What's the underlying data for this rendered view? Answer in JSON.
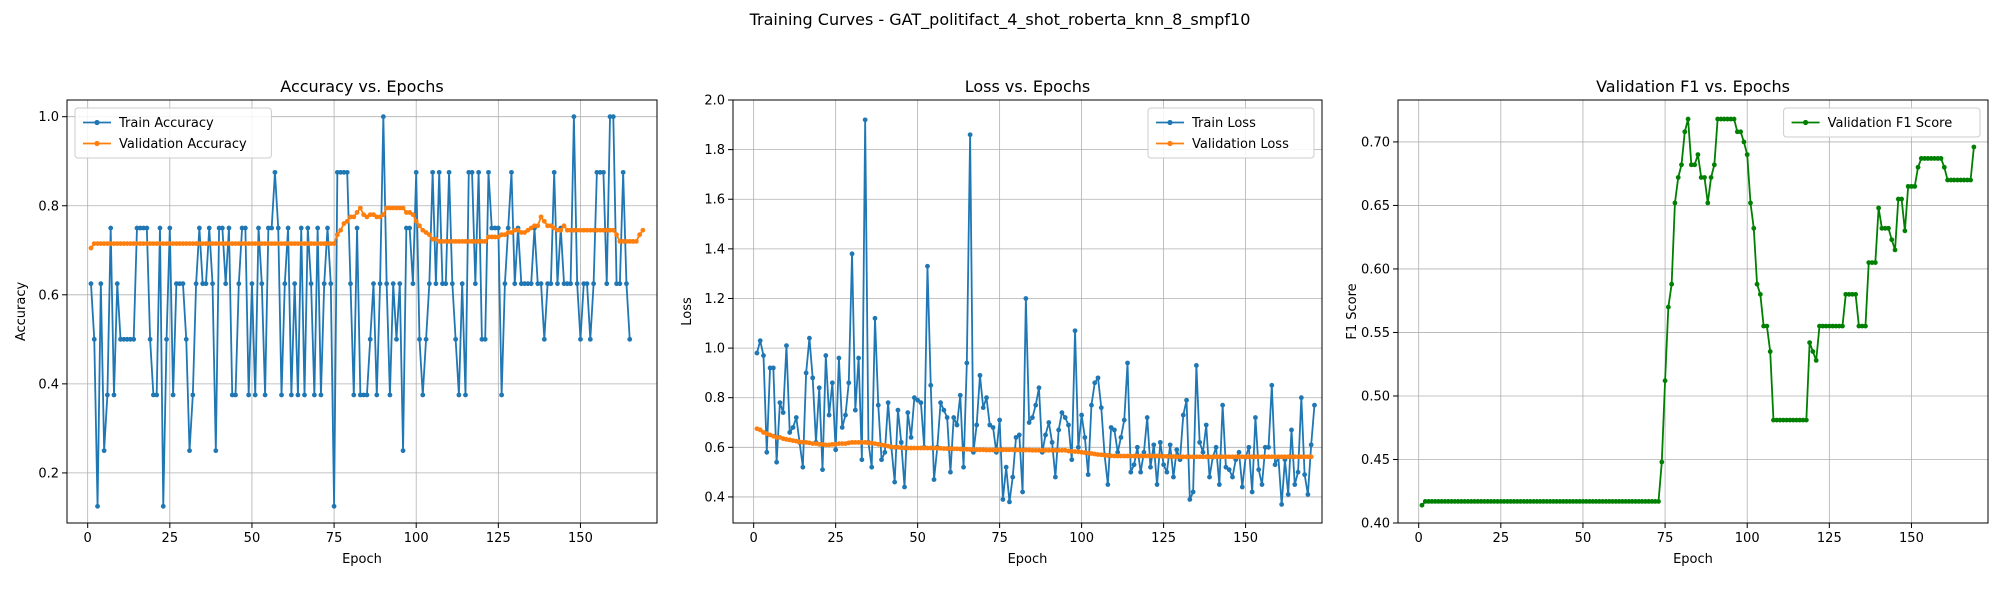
{
  "figure": {
    "suptitle": "Training Curves - GAT_politifact_4_shot_roberta_knn_8_smpf10"
  },
  "chart_data": [
    {
      "type": "line",
      "title": "Accuracy vs. Epochs",
      "xlabel": "Epoch",
      "ylabel": "Accuracy",
      "xlim": [
        -6.3,
        173.3
      ],
      "ylim": [
        0.0875,
        1.0375
      ],
      "xticks": [
        0,
        25,
        50,
        75,
        100,
        125,
        150
      ],
      "yticks": [
        0.2,
        0.4,
        0.6,
        0.8,
        1.0
      ],
      "ytick_labels": [
        "0.2",
        "0.4",
        "0.6",
        "0.8",
        "1.0"
      ],
      "grid": true,
      "legend": "upper-left",
      "x_start": 1,
      "series": [
        {
          "name": "Train Accuracy",
          "color": "#1f77b4",
          "values": [
            0.625,
            0.5,
            0.125,
            0.625,
            0.25,
            0.375,
            0.75,
            0.375,
            0.625,
            0.5,
            0.5,
            0.5,
            0.5,
            0.5,
            0.75,
            0.75,
            0.75,
            0.75,
            0.5,
            0.375,
            0.375,
            0.75,
            0.125,
            0.5,
            0.75,
            0.375,
            0.625,
            0.625,
            0.625,
            0.5,
            0.25,
            0.375,
            0.625,
            0.75,
            0.625,
            0.625,
            0.75,
            0.625,
            0.25,
            0.75,
            0.75,
            0.625,
            0.75,
            0.375,
            0.375,
            0.625,
            0.75,
            0.75,
            0.375,
            0.625,
            0.375,
            0.75,
            0.625,
            0.375,
            0.75,
            0.75,
            0.875,
            0.75,
            0.375,
            0.625,
            0.75,
            0.375,
            0.625,
            0.375,
            0.75,
            0.375,
            0.75,
            0.625,
            0.375,
            0.75,
            0.375,
            0.625,
            0.75,
            0.625,
            0.125,
            0.875,
            0.875,
            0.875,
            0.875,
            0.625,
            0.375,
            0.75,
            0.375,
            0.375,
            0.375,
            0.5,
            0.625,
            0.375,
            0.625,
            1.0,
            0.625,
            0.375,
            0.625,
            0.5,
            0.625,
            0.25,
            0.75,
            0.75,
            0.625,
            0.875,
            0.5,
            0.375,
            0.5,
            0.625,
            0.875,
            0.625,
            0.875,
            0.625,
            0.625,
            0.875,
            0.625,
            0.5,
            0.375,
            0.625,
            0.375,
            0.875,
            0.875,
            0.625,
            0.875,
            0.5,
            0.5,
            0.875,
            0.75,
            0.75,
            0.75,
            0.375,
            0.625,
            0.75,
            0.875,
            0.625,
            0.75,
            0.625,
            0.625,
            0.625,
            0.625,
            0.75,
            0.625,
            0.625,
            0.5,
            0.625,
            0.625,
            0.875,
            0.625,
            0.75,
            0.625,
            0.625,
            0.625,
            1.0,
            0.625,
            0.5,
            0.625,
            0.625,
            0.5,
            0.625,
            0.875,
            0.875,
            0.875,
            0.625,
            1.0,
            1.0,
            0.625,
            0.625,
            0.875,
            0.625,
            0.5
          ]
        },
        {
          "name": "Validation Accuracy",
          "color": "#ff7f0e",
          "values": [
            0.705,
            0.715,
            0.715,
            0.715,
            0.715,
            0.715,
            0.715,
            0.715,
            0.715,
            0.715,
            0.715,
            0.715,
            0.715,
            0.715,
            0.715,
            0.715,
            0.715,
            0.715,
            0.715,
            0.715,
            0.715,
            0.715,
            0.715,
            0.715,
            0.715,
            0.715,
            0.715,
            0.715,
            0.715,
            0.715,
            0.715,
            0.715,
            0.715,
            0.715,
            0.715,
            0.715,
            0.715,
            0.715,
            0.715,
            0.715,
            0.715,
            0.715,
            0.715,
            0.715,
            0.715,
            0.715,
            0.715,
            0.715,
            0.715,
            0.715,
            0.715,
            0.715,
            0.715,
            0.715,
            0.715,
            0.715,
            0.715,
            0.715,
            0.715,
            0.715,
            0.715,
            0.715,
            0.715,
            0.715,
            0.715,
            0.715,
            0.715,
            0.715,
            0.715,
            0.715,
            0.715,
            0.715,
            0.715,
            0.715,
            0.715,
            0.735,
            0.745,
            0.76,
            0.765,
            0.775,
            0.775,
            0.785,
            0.795,
            0.78,
            0.775,
            0.78,
            0.78,
            0.775,
            0.775,
            0.78,
            0.795,
            0.795,
            0.795,
            0.795,
            0.795,
            0.795,
            0.785,
            0.785,
            0.78,
            0.765,
            0.755,
            0.745,
            0.74,
            0.735,
            0.725,
            0.725,
            0.72,
            0.72,
            0.72,
            0.72,
            0.72,
            0.72,
            0.72,
            0.72,
            0.72,
            0.72,
            0.72,
            0.72,
            0.72,
            0.72,
            0.72,
            0.73,
            0.73,
            0.73,
            0.73,
            0.735,
            0.735,
            0.74,
            0.74,
            0.745,
            0.745,
            0.74,
            0.74,
            0.745,
            0.75,
            0.755,
            0.755,
            0.775,
            0.765,
            0.755,
            0.755,
            0.75,
            0.745,
            0.745,
            0.755,
            0.745,
            0.745,
            0.745,
            0.745,
            0.745,
            0.745,
            0.745,
            0.745,
            0.745,
            0.745,
            0.745,
            0.745,
            0.745,
            0.745,
            0.745,
            0.735,
            0.72,
            0.72,
            0.72,
            0.72,
            0.72,
            0.72,
            0.735,
            0.745
          ]
        }
      ]
    },
    {
      "type": "line",
      "title": "Loss vs. Epochs",
      "xlabel": "Epoch",
      "ylabel": "Loss",
      "xlim": [
        -6.3,
        173.3
      ],
      "ylim": [
        0.295,
        2.0
      ],
      "xticks": [
        0,
        25,
        50,
        75,
        100,
        125,
        150
      ],
      "yticks": [
        0.4,
        0.6,
        0.8,
        1.0,
        1.2,
        1.4,
        1.6,
        1.8,
        2.0
      ],
      "ytick_labels": [
        "0.4",
        "0.6",
        "0.8",
        "1.0",
        "1.2",
        "1.4",
        "1.6",
        "1.8",
        "2.0"
      ],
      "grid": true,
      "legend": "upper-right",
      "x_start": 1,
      "series": [
        {
          "name": "Train Loss",
          "color": "#1f77b4",
          "values": [
            0.98,
            1.03,
            0.97,
            0.58,
            0.92,
            0.92,
            0.54,
            0.78,
            0.74,
            1.01,
            0.66,
            0.68,
            0.72,
            0.62,
            0.52,
            0.9,
            1.04,
            0.88,
            0.62,
            0.84,
            0.51,
            0.97,
            0.73,
            0.86,
            0.59,
            0.96,
            0.68,
            0.73,
            0.86,
            1.38,
            0.75,
            0.96,
            0.55,
            1.92,
            0.62,
            0.52,
            1.12,
            0.77,
            0.55,
            0.58,
            0.78,
            0.6,
            0.46,
            0.75,
            0.62,
            0.44,
            0.74,
            0.64,
            0.8,
            0.79,
            0.78,
            0.6,
            1.33,
            0.85,
            0.47,
            0.6,
            0.78,
            0.75,
            0.72,
            0.5,
            0.72,
            0.69,
            0.81,
            0.52,
            0.94,
            1.86,
            0.58,
            0.69,
            0.89,
            0.76,
            0.8,
            0.69,
            0.68,
            0.58,
            0.71,
            0.39,
            0.52,
            0.38,
            0.48,
            0.64,
            0.65,
            0.42,
            1.2,
            0.7,
            0.72,
            0.77,
            0.84,
            0.58,
            0.65,
            0.7,
            0.62,
            0.48,
            0.67,
            0.74,
            0.72,
            0.69,
            0.55,
            1.07,
            0.6,
            0.73,
            0.64,
            0.49,
            0.77,
            0.86,
            0.88,
            0.76,
            0.57,
            0.45,
            0.68,
            0.67,
            0.58,
            0.64,
            0.71,
            0.94,
            0.5,
            0.53,
            0.6,
            0.5,
            0.58,
            0.72,
            0.52,
            0.61,
            0.45,
            0.62,
            0.53,
            0.5,
            0.61,
            0.48,
            0.59,
            0.55,
            0.73,
            0.79,
            0.39,
            0.42,
            0.93,
            0.62,
            0.58,
            0.69,
            0.48,
            0.56,
            0.6,
            0.45,
            0.77,
            0.52,
            0.51,
            0.48,
            0.55,
            0.58,
            0.44,
            0.56,
            0.6,
            0.42,
            0.72,
            0.51,
            0.45,
            0.6,
            0.6,
            0.85,
            0.53,
            0.56,
            0.37,
            0.55,
            0.41,
            0.67,
            0.45,
            0.5,
            0.8,
            0.49,
            0.41,
            0.61,
            0.77
          ]
        },
        {
          "name": "Validation Loss",
          "color": "#ff7f0e",
          "values": [
            0.675,
            0.67,
            0.66,
            0.655,
            0.65,
            0.645,
            0.64,
            0.64,
            0.635,
            0.632,
            0.63,
            0.627,
            0.625,
            0.622,
            0.62,
            0.62,
            0.618,
            0.615,
            0.615,
            0.612,
            0.612,
            0.61,
            0.61,
            0.612,
            0.612,
            0.615,
            0.615,
            0.615,
            0.618,
            0.62,
            0.62,
            0.62,
            0.62,
            0.62,
            0.618,
            0.617,
            0.615,
            0.612,
            0.61,
            0.608,
            0.605,
            0.602,
            0.6,
            0.6,
            0.598,
            0.598,
            0.597,
            0.597,
            0.597,
            0.597,
            0.597,
            0.597,
            0.597,
            0.597,
            0.597,
            0.596,
            0.596,
            0.595,
            0.595,
            0.595,
            0.594,
            0.594,
            0.593,
            0.592,
            0.592,
            0.591,
            0.591,
            0.59,
            0.59,
            0.59,
            0.589,
            0.589,
            0.589,
            0.589,
            0.59,
            0.59,
            0.59,
            0.59,
            0.59,
            0.589,
            0.589,
            0.589,
            0.589,
            0.589,
            0.588,
            0.588,
            0.588,
            0.588,
            0.588,
            0.588,
            0.588,
            0.588,
            0.588,
            0.588,
            0.588,
            0.585,
            0.584,
            0.583,
            0.582,
            0.58,
            0.579,
            0.577,
            0.575,
            0.573,
            0.571,
            0.57,
            0.568,
            0.567,
            0.566,
            0.565,
            0.565,
            0.565,
            0.565,
            0.565,
            0.565,
            0.565,
            0.565,
            0.565,
            0.565,
            0.565,
            0.565,
            0.565,
            0.565,
            0.565,
            0.564,
            0.564,
            0.563,
            0.563,
            0.562,
            0.562,
            0.562,
            0.562,
            0.562,
            0.562,
            0.562,
            0.562,
            0.562,
            0.562,
            0.562,
            0.562,
            0.562,
            0.562,
            0.562,
            0.562,
            0.562,
            0.562,
            0.562,
            0.562,
            0.562,
            0.562,
            0.562,
            0.562,
            0.562,
            0.562,
            0.562,
            0.562,
            0.562,
            0.562,
            0.562,
            0.562,
            0.562,
            0.562,
            0.562,
            0.562,
            0.562,
            0.562,
            0.562,
            0.562,
            0.562,
            0.562
          ]
        }
      ]
    },
    {
      "type": "line",
      "title": "Validation F1 vs. Epochs",
      "xlabel": "Epoch",
      "ylabel": "F1 Score",
      "xlim": [
        -6.3,
        173.3
      ],
      "ylim": [
        0.4,
        0.733
      ],
      "xticks": [
        0,
        25,
        50,
        75,
        100,
        125,
        150
      ],
      "yticks": [
        0.4,
        0.45,
        0.5,
        0.55,
        0.6,
        0.65,
        0.7
      ],
      "ytick_labels": [
        "0.40",
        "0.45",
        "0.50",
        "0.55",
        "0.60",
        "0.65",
        "0.70"
      ],
      "grid": true,
      "legend": "upper-right",
      "x_start": 1,
      "series": [
        {
          "name": "Validation F1 Score",
          "color": "#008000",
          "values": [
            0.414,
            0.417,
            0.417,
            0.417,
            0.417,
            0.417,
            0.417,
            0.417,
            0.417,
            0.417,
            0.417,
            0.417,
            0.417,
            0.417,
            0.417,
            0.417,
            0.417,
            0.417,
            0.417,
            0.417,
            0.417,
            0.417,
            0.417,
            0.417,
            0.417,
            0.417,
            0.417,
            0.417,
            0.417,
            0.417,
            0.417,
            0.417,
            0.417,
            0.417,
            0.417,
            0.417,
            0.417,
            0.417,
            0.417,
            0.417,
            0.417,
            0.417,
            0.417,
            0.417,
            0.417,
            0.417,
            0.417,
            0.417,
            0.417,
            0.417,
            0.417,
            0.417,
            0.417,
            0.417,
            0.417,
            0.417,
            0.417,
            0.417,
            0.417,
            0.417,
            0.417,
            0.417,
            0.417,
            0.417,
            0.417,
            0.417,
            0.417,
            0.417,
            0.417,
            0.417,
            0.417,
            0.417,
            0.417,
            0.448,
            0.512,
            0.57,
            0.588,
            0.652,
            0.672,
            0.682,
            0.708,
            0.718,
            0.682,
            0.682,
            0.69,
            0.672,
            0.672,
            0.652,
            0.672,
            0.682,
            0.718,
            0.718,
            0.718,
            0.718,
            0.718,
            0.718,
            0.708,
            0.708,
            0.7,
            0.69,
            0.652,
            0.632,
            0.588,
            0.58,
            0.555,
            0.555,
            0.535,
            0.481,
            0.481,
            0.481,
            0.481,
            0.481,
            0.481,
            0.481,
            0.481,
            0.481,
            0.481,
            0.481,
            0.542,
            0.535,
            0.528,
            0.555,
            0.555,
            0.555,
            0.555,
            0.555,
            0.555,
            0.555,
            0.555,
            0.58,
            0.58,
            0.58,
            0.58,
            0.555,
            0.555,
            0.555,
            0.605,
            0.605,
            0.605,
            0.648,
            0.632,
            0.632,
            0.632,
            0.623,
            0.615,
            0.655,
            0.655,
            0.63,
            0.665,
            0.665,
            0.665,
            0.68,
            0.687,
            0.687,
            0.687,
            0.687,
            0.687,
            0.687,
            0.687,
            0.68,
            0.67,
            0.67,
            0.67,
            0.67,
            0.67,
            0.67,
            0.67,
            0.67,
            0.696
          ]
        }
      ]
    }
  ]
}
